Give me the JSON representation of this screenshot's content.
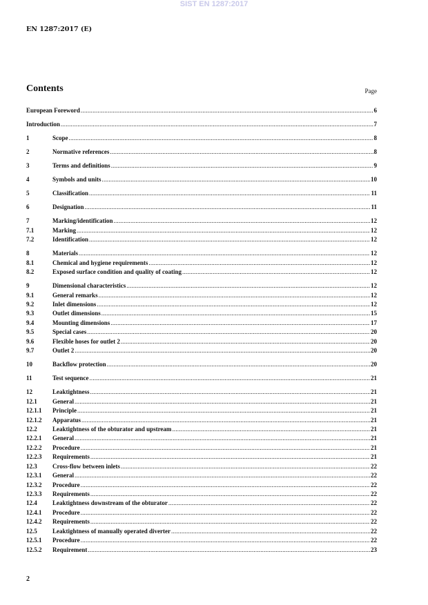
{
  "watermark": "SIST EN 1287:2017",
  "header": "EN 1287:2017 (E)",
  "title": "Contents",
  "page_label": "Page",
  "page_number": "2",
  "groups": [
    [
      {
        "num": "",
        "title": "European Foreword",
        "page": "6"
      }
    ],
    [
      {
        "num": "",
        "title": "Introduction",
        "page": "7"
      }
    ],
    [
      {
        "num": "1",
        "title": "Scope",
        "page": "8"
      }
    ],
    [
      {
        "num": "2",
        "title": "Normative references",
        "page": "8"
      }
    ],
    [
      {
        "num": "3",
        "title": "Terms and definitions",
        "page": "9"
      }
    ],
    [
      {
        "num": "4",
        "title": "Symbols and units",
        "page": "10"
      }
    ],
    [
      {
        "num": "5",
        "title": "Classification",
        "page": "11"
      }
    ],
    [
      {
        "num": "6",
        "title": "Designation",
        "page": "11"
      }
    ],
    [
      {
        "num": "7",
        "title": "Marking/identification",
        "page": "12"
      },
      {
        "num": "7.1",
        "title": "Marking",
        "page": "12"
      },
      {
        "num": "7.2",
        "title": "Identification",
        "page": "12"
      }
    ],
    [
      {
        "num": "8",
        "title": "Materials",
        "page": "12"
      },
      {
        "num": "8.1",
        "title": "Chemical and hygiene requirements",
        "page": "12"
      },
      {
        "num": "8.2",
        "title": "Exposed surface condition and quality of coating",
        "page": "12"
      }
    ],
    [
      {
        "num": "9",
        "title": "Dimensional characteristics",
        "page": "12"
      },
      {
        "num": "9.1",
        "title": "General remarks",
        "page": "12"
      },
      {
        "num": "9.2",
        "title": "Inlet dimensions",
        "page": "12"
      },
      {
        "num": "9.3",
        "title": "Outlet dimensions",
        "page": "15"
      },
      {
        "num": "9.4",
        "title": "Mounting dimensions",
        "page": "17"
      },
      {
        "num": "9.5",
        "title": "Special cases",
        "page": "20"
      },
      {
        "num": "9.6",
        "title": "Flexible hoses for outlet 2",
        "page": "20"
      },
      {
        "num": "9.7",
        "title": "Outlet 2",
        "page": "20"
      }
    ],
    [
      {
        "num": "10",
        "title": "Backflow protection",
        "page": "20"
      }
    ],
    [
      {
        "num": "11",
        "title": "Test sequence",
        "page": "21"
      }
    ],
    [
      {
        "num": "12",
        "title": "Leaktightness",
        "page": "21"
      },
      {
        "num": "12.1",
        "title": "General",
        "page": "21"
      },
      {
        "num": "12.1.1",
        "title": "Principle",
        "page": "21"
      },
      {
        "num": "12.1.2",
        "title": "Apparatus",
        "page": "21"
      },
      {
        "num": "12.2",
        "title": "Leaktightness of the obturator and upstream",
        "page": "21"
      },
      {
        "num": "12.2.1",
        "title": "General",
        "page": "21"
      },
      {
        "num": "12.2.2",
        "title": "Procedure",
        "page": "21"
      },
      {
        "num": "12.2.3",
        "title": "Requirements",
        "page": "21"
      },
      {
        "num": "12.3",
        "title": "Cross-flow between inlets",
        "page": "22"
      },
      {
        "num": "12.3.1",
        "title": "General",
        "page": "22"
      },
      {
        "num": "12.3.2",
        "title": "Procedure",
        "page": "22"
      },
      {
        "num": "12.3.3",
        "title": "Requirements",
        "page": "22"
      },
      {
        "num": "12.4",
        "title": "Leaktightness downstream of the obturator",
        "page": "22"
      },
      {
        "num": "12.4.1",
        "title": "Procedure",
        "page": "22"
      },
      {
        "num": "12.4.2",
        "title": "Requirements",
        "page": "22"
      },
      {
        "num": "12.5",
        "title": "Leaktightness of manually operated diverter",
        "page": "22"
      },
      {
        "num": "12.5.1",
        "title": "Procedure",
        "page": "22"
      },
      {
        "num": "12.5.2",
        "title": "Requirement",
        "page": "23"
      }
    ]
  ]
}
